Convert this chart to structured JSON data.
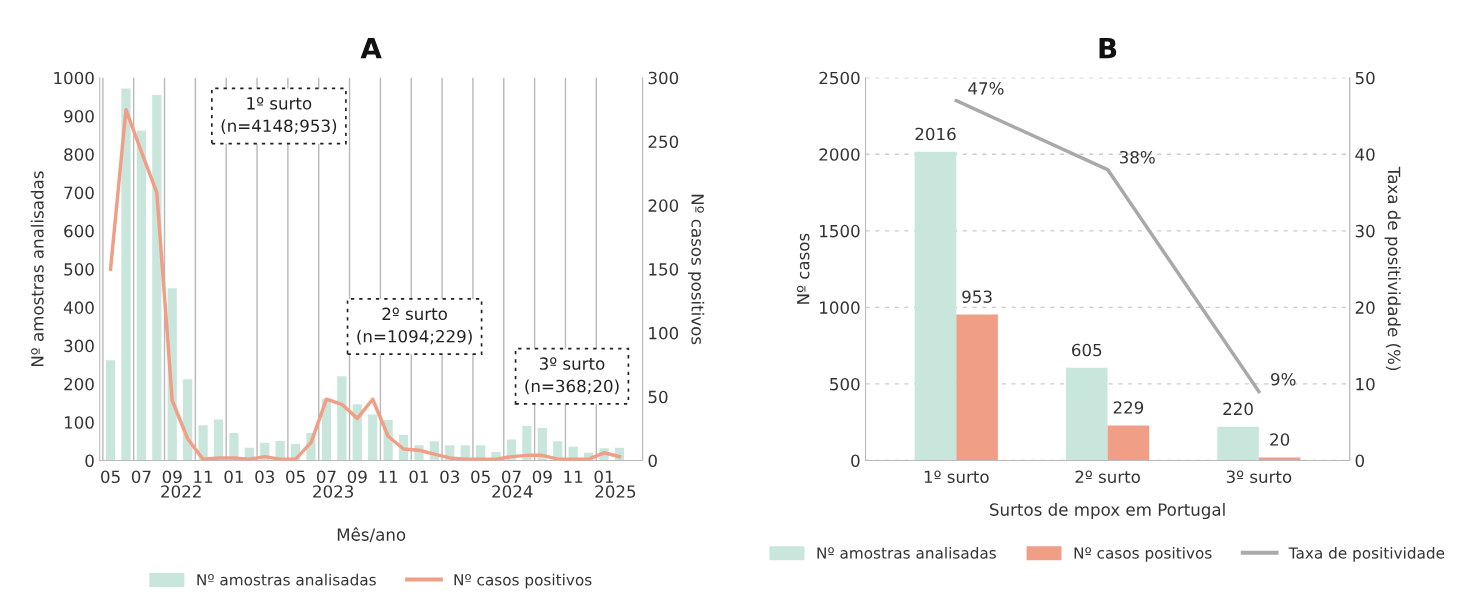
{
  "chart_data": [
    {
      "type": "bar",
      "title": "A",
      "xlabel": "Mês/ano",
      "ylabel": "Nº amostras analisadas",
      "y2label": "Nº casos positivos",
      "categories": [
        "05",
        null,
        "07",
        null,
        "09",
        null,
        "11",
        null,
        "01",
        null,
        "03",
        null,
        "05",
        null,
        "07",
        null,
        "09",
        null,
        "11",
        null,
        "01",
        null,
        "03",
        null,
        "05",
        null,
        "07",
        null,
        "09",
        null,
        "11",
        null,
        "01",
        null
      ],
      "series": [
        {
          "name": "Nº amostras analisadas",
          "type": "bar",
          "color": "#c8e6dc",
          "values": [
            262,
            972,
            862,
            955,
            450,
            212,
            92,
            107,
            72,
            33,
            46,
            51,
            43,
            72,
            162,
            220,
            147,
            120,
            106,
            67,
            40,
            50,
            40,
            40,
            40,
            22,
            55,
            90,
            85,
            50,
            36,
            20,
            32,
            33
          ]
        },
        {
          "name": "Nº casos positivos",
          "type": "line",
          "axis": "y2",
          "color": "#f19e86",
          "values": [
            150,
            275,
            242,
            210,
            47,
            17,
            1,
            2,
            2,
            1,
            3,
            1,
            1,
            14,
            48,
            44,
            33,
            48,
            19,
            9,
            8,
            5,
            2,
            1,
            1,
            1,
            3,
            4,
            4,
            1,
            1,
            1,
            6,
            3
          ]
        }
      ],
      "ylim": [
        0,
        1000
      ],
      "yticks": [
        0,
        100,
        200,
        300,
        400,
        500,
        600,
        700,
        800,
        900,
        1000
      ],
      "y2lim": [
        0,
        300
      ],
      "y2ticks": [
        0,
        50,
        100,
        150,
        200,
        250,
        300
      ],
      "annotations": [
        "1º surto\n(n=4148;953)",
        "2º surto\n(n=1094;229)",
        "3º surto\n(n=368;20)",
        "2022",
        "2023",
        "2024",
        "2025"
      ],
      "grid": "x",
      "legend": "bottom"
    },
    {
      "type": "bar",
      "title": "B",
      "xlabel": "Surtos de mpox em Portugal",
      "ylabel": "Nº casos",
      "y2label": "Taxa de positividade (%)",
      "categories": [
        "1º surto",
        "2º surto",
        "3º surto"
      ],
      "series": [
        {
          "name": "Nº amostras analisadas",
          "type": "bar",
          "color": "#c8e6dc",
          "values": [
            2016,
            605,
            220
          ],
          "value_labels": [
            "2016",
            "605",
            "220"
          ]
        },
        {
          "name": "Nº casos positivos",
          "type": "bar",
          "color": "#f19e86",
          "values": [
            953,
            229,
            20
          ],
          "value_labels": [
            "953",
            "229",
            "20"
          ]
        },
        {
          "name": "Taxa de positividade",
          "type": "line",
          "axis": "y2",
          "color": "#a9a9ab",
          "values": [
            47,
            38,
            9
          ],
          "value_labels": [
            "47%",
            "38%",
            "9%"
          ]
        }
      ],
      "ylim": [
        0,
        2500
      ],
      "yticks": [
        0,
        500,
        1000,
        1500,
        2000,
        2500
      ],
      "y2lim": [
        0,
        50
      ],
      "y2ticks": [
        0,
        10,
        20,
        30,
        40,
        50
      ],
      "grid": "y",
      "legend": "bottom"
    }
  ]
}
